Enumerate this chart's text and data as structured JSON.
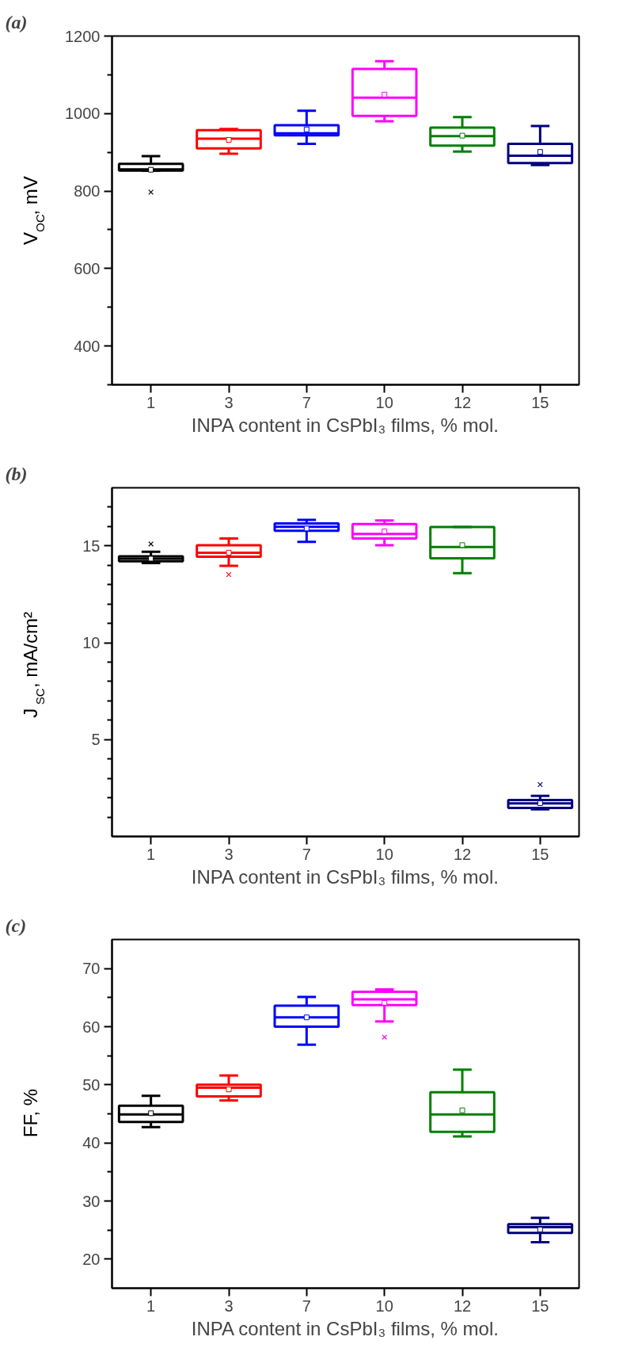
{
  "chart_data": [
    {
      "type": "box",
      "title": "(a)",
      "xlabel": "INPA content in CsPbI₃ films, % mol.",
      "ylabel": "V$_{OC}$, mV",
      "categories": [
        "1",
        "3",
        "7",
        "10",
        "12",
        "15"
      ],
      "colors": [
        "#000000",
        "#ff0000",
        "#0000ff",
        "#ff00ff",
        "#008000",
        "#000080"
      ],
      "boxes": [
        {
          "low": 853,
          "q1": 853,
          "median": 856,
          "q3": 870,
          "high": 890,
          "mean": 855,
          "outliers": [
            797
          ]
        },
        {
          "low": 896,
          "q1": 910,
          "median": 935,
          "q3": 957,
          "high": 960,
          "mean": 932
        },
        {
          "low": 922,
          "q1": 944,
          "median": 949,
          "q3": 970,
          "high": 1007,
          "mean": 959
        },
        {
          "low": 980,
          "q1": 994,
          "median": 1041,
          "q3": 1115,
          "high": 1135,
          "mean": 1049
        },
        {
          "low": 902,
          "q1": 917,
          "median": 942,
          "q3": 964,
          "high": 991,
          "mean": 943
        },
        {
          "low": 867,
          "q1": 872,
          "median": 891,
          "q3": 922,
          "high": 968,
          "mean": 901
        }
      ],
      "ylim": [
        300,
        1200
      ],
      "yticks": [
        {
          "value": 300,
          "label": null
        },
        400,
        {
          "value": 500,
          "label": null
        },
        600,
        {
          "value": 700,
          "label": null
        },
        800,
        {
          "value": 900,
          "label": null
        },
        1000,
        {
          "value": 1100,
          "label": null
        },
        1200
      ],
      "grid": false
    },
    {
      "type": "box",
      "title": "(b)",
      "xlabel": "INPA content in CsPbI₃ films, % mol.",
      "ylabel": "J$_{SC}$, mA/cm²",
      "categories": [
        "1",
        "3",
        "7",
        "10",
        "12",
        "15"
      ],
      "colors": [
        "#000000",
        "#ff0000",
        "#0000ff",
        "#ff00ff",
        "#008000",
        "#000080"
      ],
      "boxes": [
        {
          "low": 14.11,
          "q1": 14.21,
          "median": 14.34,
          "q3": 14.46,
          "high": 14.7,
          "mean": 14.34,
          "outliers": [
            15.1
          ]
        },
        {
          "low": 13.97,
          "q1": 14.44,
          "median": 14.65,
          "q3": 15.03,
          "high": 15.38,
          "mean": 14.65,
          "outliers": [
            13.52
          ]
        },
        {
          "low": 15.21,
          "q1": 15.78,
          "median": 15.99,
          "q3": 16.16,
          "high": 16.34,
          "mean": 15.9
        },
        {
          "low": 15.03,
          "q1": 15.38,
          "median": 15.62,
          "q3": 16.13,
          "high": 16.31,
          "mean": 15.75
        },
        {
          "low": 13.59,
          "q1": 14.36,
          "median": 14.94,
          "q3": 15.97,
          "high": 15.97,
          "mean": 15.04
        },
        {
          "low": 1.4,
          "q1": 1.47,
          "median": 1.71,
          "q3": 1.88,
          "high": 2.1,
          "mean": 1.72,
          "outliers": [
            2.68
          ]
        }
      ],
      "ylim": [
        0,
        18
      ],
      "yticks": [
        {
          "value": 1,
          "label": null
        },
        {
          "value": 2,
          "label": null
        },
        {
          "value": 3,
          "label": null
        },
        {
          "value": 4,
          "label": null
        },
        5,
        {
          "value": 6,
          "label": null
        },
        {
          "value": 7,
          "label": null
        },
        {
          "value": 8,
          "label": null
        },
        {
          "value": 9,
          "label": null
        },
        10,
        {
          "value": 11,
          "label": null
        },
        {
          "value": 12,
          "label": null
        },
        {
          "value": 13,
          "label": null
        },
        {
          "value": 14,
          "label": null
        },
        15,
        {
          "value": 16,
          "label": null
        },
        {
          "value": 17,
          "label": null
        }
      ],
      "grid": false
    },
    {
      "type": "box",
      "title": "(c)",
      "xlabel": "INPA content in CsPbI₃ films, % mol.",
      "ylabel": "FF, %",
      "categories": [
        "1",
        "3",
        "7",
        "10",
        "12",
        "15"
      ],
      "colors": [
        "#000000",
        "#ff0000",
        "#0000ff",
        "#ff00ff",
        "#008000",
        "#000080"
      ],
      "boxes": [
        {
          "low": 42.7,
          "q1": 43.6,
          "median": 44.9,
          "q3": 46.4,
          "high": 48.1,
          "mean": 45.1
        },
        {
          "low": 47.3,
          "q1": 48.0,
          "median": 49.5,
          "q3": 50.0,
          "high": 51.6,
          "mean": 49.2
        },
        {
          "low": 56.9,
          "q1": 60.0,
          "median": 61.6,
          "q3": 63.6,
          "high": 65.1,
          "mean": 61.6
        },
        {
          "low": 60.9,
          "q1": 63.7,
          "median": 64.7,
          "q3": 66.0,
          "high": 66.4,
          "mean": 64.1,
          "outliers": [
            58.2
          ]
        },
        {
          "low": 41.1,
          "q1": 41.9,
          "median": 44.9,
          "q3": 48.7,
          "high": 52.6,
          "mean": 45.6
        },
        {
          "low": 22.9,
          "q1": 24.5,
          "median": 25.5,
          "q3": 26.0,
          "high": 27.1,
          "mean": 25.1
        }
      ],
      "ylim": [
        15,
        75
      ],
      "yticks": [
        20,
        {
          "value": 25,
          "label": null
        },
        30,
        {
          "value": 35,
          "label": null
        },
        40,
        {
          "value": 45,
          "label": null
        },
        50,
        {
          "value": 55,
          "label": null
        },
        60,
        {
          "value": 65,
          "label": null
        },
        70
      ],
      "grid": false
    }
  ]
}
